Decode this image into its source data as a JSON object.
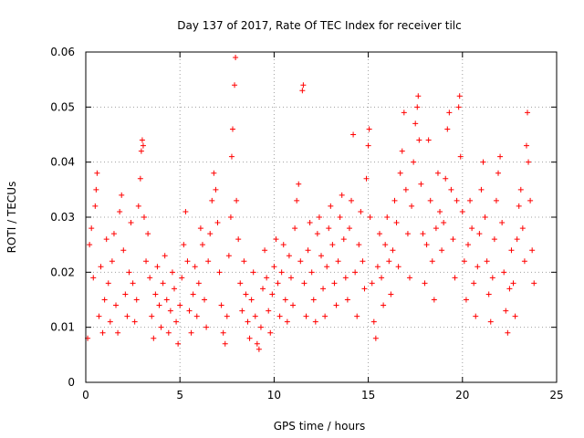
{
  "chart_data": {
    "type": "scatter",
    "title": "Day 137 of 2017, Rate Of TEC Index for receiver tilc",
    "xlabel": "GPS time / hours",
    "ylabel": "ROTI / TECUs",
    "xlim": [
      0,
      25
    ],
    "ylim": [
      0,
      0.06
    ],
    "xticks": [
      0,
      5,
      10,
      15,
      20,
      25
    ],
    "yticks": [
      0,
      0.01,
      0.02,
      0.03,
      0.04,
      0.05,
      0.06
    ],
    "xtick_labels": [
      "0",
      "5",
      "10",
      "15",
      "20",
      "25"
    ],
    "ytick_labels": [
      "0",
      "0.01",
      "0.02",
      "0.03",
      "0.04",
      "0.05",
      "0.06"
    ],
    "grid": true,
    "marker": "+",
    "color": "#ff0000",
    "points": [
      [
        0.1,
        0.008
      ],
      [
        0.2,
        0.025
      ],
      [
        0.3,
        0.028
      ],
      [
        0.4,
        0.019
      ],
      [
        0.5,
        0.032
      ],
      [
        0.55,
        0.035
      ],
      [
        0.6,
        0.038
      ],
      [
        0.7,
        0.012
      ],
      [
        0.8,
        0.021
      ],
      [
        0.9,
        0.009
      ],
      [
        1.0,
        0.015
      ],
      [
        1.1,
        0.026
      ],
      [
        1.2,
        0.018
      ],
      [
        1.3,
        0.011
      ],
      [
        1.4,
        0.022
      ],
      [
        1.5,
        0.027
      ],
      [
        1.6,
        0.014
      ],
      [
        1.7,
        0.009
      ],
      [
        1.8,
        0.031
      ],
      [
        1.9,
        0.034
      ],
      [
        2.0,
        0.024
      ],
      [
        2.1,
        0.016
      ],
      [
        2.2,
        0.012
      ],
      [
        2.3,
        0.02
      ],
      [
        2.4,
        0.029
      ],
      [
        2.5,
        0.018
      ],
      [
        2.6,
        0.011
      ],
      [
        2.7,
        0.015
      ],
      [
        2.8,
        0.032
      ],
      [
        2.9,
        0.037
      ],
      [
        2.95,
        0.042
      ],
      [
        3.0,
        0.044
      ],
      [
        3.05,
        0.043
      ],
      [
        3.1,
        0.03
      ],
      [
        3.2,
        0.022
      ],
      [
        3.3,
        0.027
      ],
      [
        3.4,
        0.019
      ],
      [
        3.5,
        0.012
      ],
      [
        3.6,
        0.008
      ],
      [
        3.7,
        0.016
      ],
      [
        3.8,
        0.021
      ],
      [
        3.9,
        0.014
      ],
      [
        4.0,
        0.01
      ],
      [
        4.1,
        0.018
      ],
      [
        4.2,
        0.023
      ],
      [
        4.3,
        0.015
      ],
      [
        4.4,
        0.009
      ],
      [
        4.5,
        0.013
      ],
      [
        4.6,
        0.02
      ],
      [
        4.7,
        0.017
      ],
      [
        4.8,
        0.011
      ],
      [
        4.9,
        0.007
      ],
      [
        5.0,
        0.014
      ],
      [
        5.1,
        0.019
      ],
      [
        5.2,
        0.025
      ],
      [
        5.3,
        0.031
      ],
      [
        5.4,
        0.022
      ],
      [
        5.5,
        0.013
      ],
      [
        5.6,
        0.009
      ],
      [
        5.7,
        0.016
      ],
      [
        5.8,
        0.021
      ],
      [
        5.9,
        0.012
      ],
      [
        6.0,
        0.018
      ],
      [
        6.1,
        0.028
      ],
      [
        6.2,
        0.025
      ],
      [
        6.3,
        0.015
      ],
      [
        6.4,
        0.01
      ],
      [
        6.5,
        0.022
      ],
      [
        6.6,
        0.027
      ],
      [
        6.7,
        0.033
      ],
      [
        6.8,
        0.038
      ],
      [
        6.9,
        0.035
      ],
      [
        7.0,
        0.029
      ],
      [
        7.1,
        0.02
      ],
      [
        7.2,
        0.014
      ],
      [
        7.3,
        0.009
      ],
      [
        7.4,
        0.007
      ],
      [
        7.5,
        0.012
      ],
      [
        7.6,
        0.023
      ],
      [
        7.7,
        0.03
      ],
      [
        7.75,
        0.041
      ],
      [
        7.8,
        0.046
      ],
      [
        7.9,
        0.054
      ],
      [
        7.95,
        0.059
      ],
      [
        8.0,
        0.033
      ],
      [
        8.1,
        0.026
      ],
      [
        8.2,
        0.018
      ],
      [
        8.3,
        0.013
      ],
      [
        8.4,
        0.022
      ],
      [
        8.5,
        0.016
      ],
      [
        8.6,
        0.011
      ],
      [
        8.7,
        0.008
      ],
      [
        8.8,
        0.015
      ],
      [
        8.9,
        0.02
      ],
      [
        9.0,
        0.012
      ],
      [
        9.1,
        0.007
      ],
      [
        9.2,
        0.006
      ],
      [
        9.3,
        0.01
      ],
      [
        9.4,
        0.017
      ],
      [
        9.5,
        0.024
      ],
      [
        9.6,
        0.019
      ],
      [
        9.7,
        0.013
      ],
      [
        9.8,
        0.009
      ],
      [
        9.9,
        0.016
      ],
      [
        10.0,
        0.021
      ],
      [
        10.1,
        0.026
      ],
      [
        10.2,
        0.018
      ],
      [
        10.3,
        0.012
      ],
      [
        10.4,
        0.02
      ],
      [
        10.5,
        0.025
      ],
      [
        10.6,
        0.015
      ],
      [
        10.7,
        0.011
      ],
      [
        10.8,
        0.023
      ],
      [
        10.9,
        0.019
      ],
      [
        11.0,
        0.014
      ],
      [
        11.1,
        0.028
      ],
      [
        11.2,
        0.033
      ],
      [
        11.3,
        0.036
      ],
      [
        11.4,
        0.022
      ],
      [
        11.5,
        0.053
      ],
      [
        11.55,
        0.054
      ],
      [
        11.6,
        0.018
      ],
      [
        11.7,
        0.012
      ],
      [
        11.8,
        0.024
      ],
      [
        11.9,
        0.029
      ],
      [
        12.0,
        0.02
      ],
      [
        12.1,
        0.015
      ],
      [
        12.2,
        0.011
      ],
      [
        12.3,
        0.027
      ],
      [
        12.4,
        0.03
      ],
      [
        12.5,
        0.023
      ],
      [
        12.6,
        0.017
      ],
      [
        12.7,
        0.012
      ],
      [
        12.8,
        0.021
      ],
      [
        12.9,
        0.028
      ],
      [
        13.0,
        0.032
      ],
      [
        13.1,
        0.025
      ],
      [
        13.2,
        0.018
      ],
      [
        13.3,
        0.014
      ],
      [
        13.4,
        0.022
      ],
      [
        13.5,
        0.03
      ],
      [
        13.6,
        0.034
      ],
      [
        13.7,
        0.026
      ],
      [
        13.8,
        0.019
      ],
      [
        13.9,
        0.015
      ],
      [
        14.0,
        0.028
      ],
      [
        14.1,
        0.033
      ],
      [
        14.2,
        0.045
      ],
      [
        14.3,
        0.02
      ],
      [
        14.4,
        0.012
      ],
      [
        14.5,
        0.025
      ],
      [
        14.6,
        0.031
      ],
      [
        14.7,
        0.022
      ],
      [
        14.8,
        0.017
      ],
      [
        14.9,
        0.037
      ],
      [
        15.0,
        0.043
      ],
      [
        15.05,
        0.046
      ],
      [
        15.1,
        0.03
      ],
      [
        15.2,
        0.018
      ],
      [
        15.3,
        0.011
      ],
      [
        15.4,
        0.008
      ],
      [
        15.5,
        0.021
      ],
      [
        15.6,
        0.027
      ],
      [
        15.7,
        0.019
      ],
      [
        15.8,
        0.014
      ],
      [
        15.9,
        0.025
      ],
      [
        16.0,
        0.03
      ],
      [
        16.1,
        0.022
      ],
      [
        16.2,
        0.016
      ],
      [
        16.3,
        0.024
      ],
      [
        16.4,
        0.033
      ],
      [
        16.5,
        0.029
      ],
      [
        16.6,
        0.021
      ],
      [
        16.7,
        0.038
      ],
      [
        16.8,
        0.042
      ],
      [
        16.9,
        0.049
      ],
      [
        17.0,
        0.035
      ],
      [
        17.1,
        0.027
      ],
      [
        17.2,
        0.019
      ],
      [
        17.3,
        0.032
      ],
      [
        17.4,
        0.04
      ],
      [
        17.5,
        0.047
      ],
      [
        17.6,
        0.05
      ],
      [
        17.65,
        0.052
      ],
      [
        17.7,
        0.044
      ],
      [
        17.8,
        0.036
      ],
      [
        17.9,
        0.027
      ],
      [
        18.0,
        0.018
      ],
      [
        18.1,
        0.025
      ],
      [
        18.2,
        0.044
      ],
      [
        18.3,
        0.033
      ],
      [
        18.4,
        0.022
      ],
      [
        18.5,
        0.015
      ],
      [
        18.6,
        0.028
      ],
      [
        18.7,
        0.038
      ],
      [
        18.8,
        0.031
      ],
      [
        18.9,
        0.024
      ],
      [
        19.0,
        0.029
      ],
      [
        19.1,
        0.037
      ],
      [
        19.2,
        0.046
      ],
      [
        19.3,
        0.049
      ],
      [
        19.4,
        0.035
      ],
      [
        19.5,
        0.026
      ],
      [
        19.6,
        0.019
      ],
      [
        19.7,
        0.033
      ],
      [
        19.8,
        0.05
      ],
      [
        19.85,
        0.052
      ],
      [
        19.9,
        0.041
      ],
      [
        20.0,
        0.031
      ],
      [
        20.1,
        0.022
      ],
      [
        20.2,
        0.015
      ],
      [
        20.3,
        0.025
      ],
      [
        20.4,
        0.033
      ],
      [
        20.5,
        0.028
      ],
      [
        20.6,
        0.018
      ],
      [
        20.7,
        0.012
      ],
      [
        20.8,
        0.021
      ],
      [
        20.9,
        0.027
      ],
      [
        21.0,
        0.035
      ],
      [
        21.1,
        0.04
      ],
      [
        21.2,
        0.03
      ],
      [
        21.3,
        0.022
      ],
      [
        21.4,
        0.016
      ],
      [
        21.5,
        0.011
      ],
      [
        21.6,
        0.019
      ],
      [
        21.7,
        0.026
      ],
      [
        21.8,
        0.033
      ],
      [
        21.9,
        0.038
      ],
      [
        22.0,
        0.041
      ],
      [
        22.1,
        0.029
      ],
      [
        22.2,
        0.02
      ],
      [
        22.3,
        0.013
      ],
      [
        22.4,
        0.009
      ],
      [
        22.5,
        0.017
      ],
      [
        22.6,
        0.024
      ],
      [
        22.7,
        0.018
      ],
      [
        22.8,
        0.012
      ],
      [
        22.9,
        0.026
      ],
      [
        23.0,
        0.032
      ],
      [
        23.1,
        0.035
      ],
      [
        23.2,
        0.028
      ],
      [
        23.3,
        0.022
      ],
      [
        23.4,
        0.043
      ],
      [
        23.45,
        0.049
      ],
      [
        23.5,
        0.04
      ],
      [
        23.6,
        0.033
      ],
      [
        23.7,
        0.024
      ],
      [
        23.8,
        0.018
      ]
    ]
  }
}
